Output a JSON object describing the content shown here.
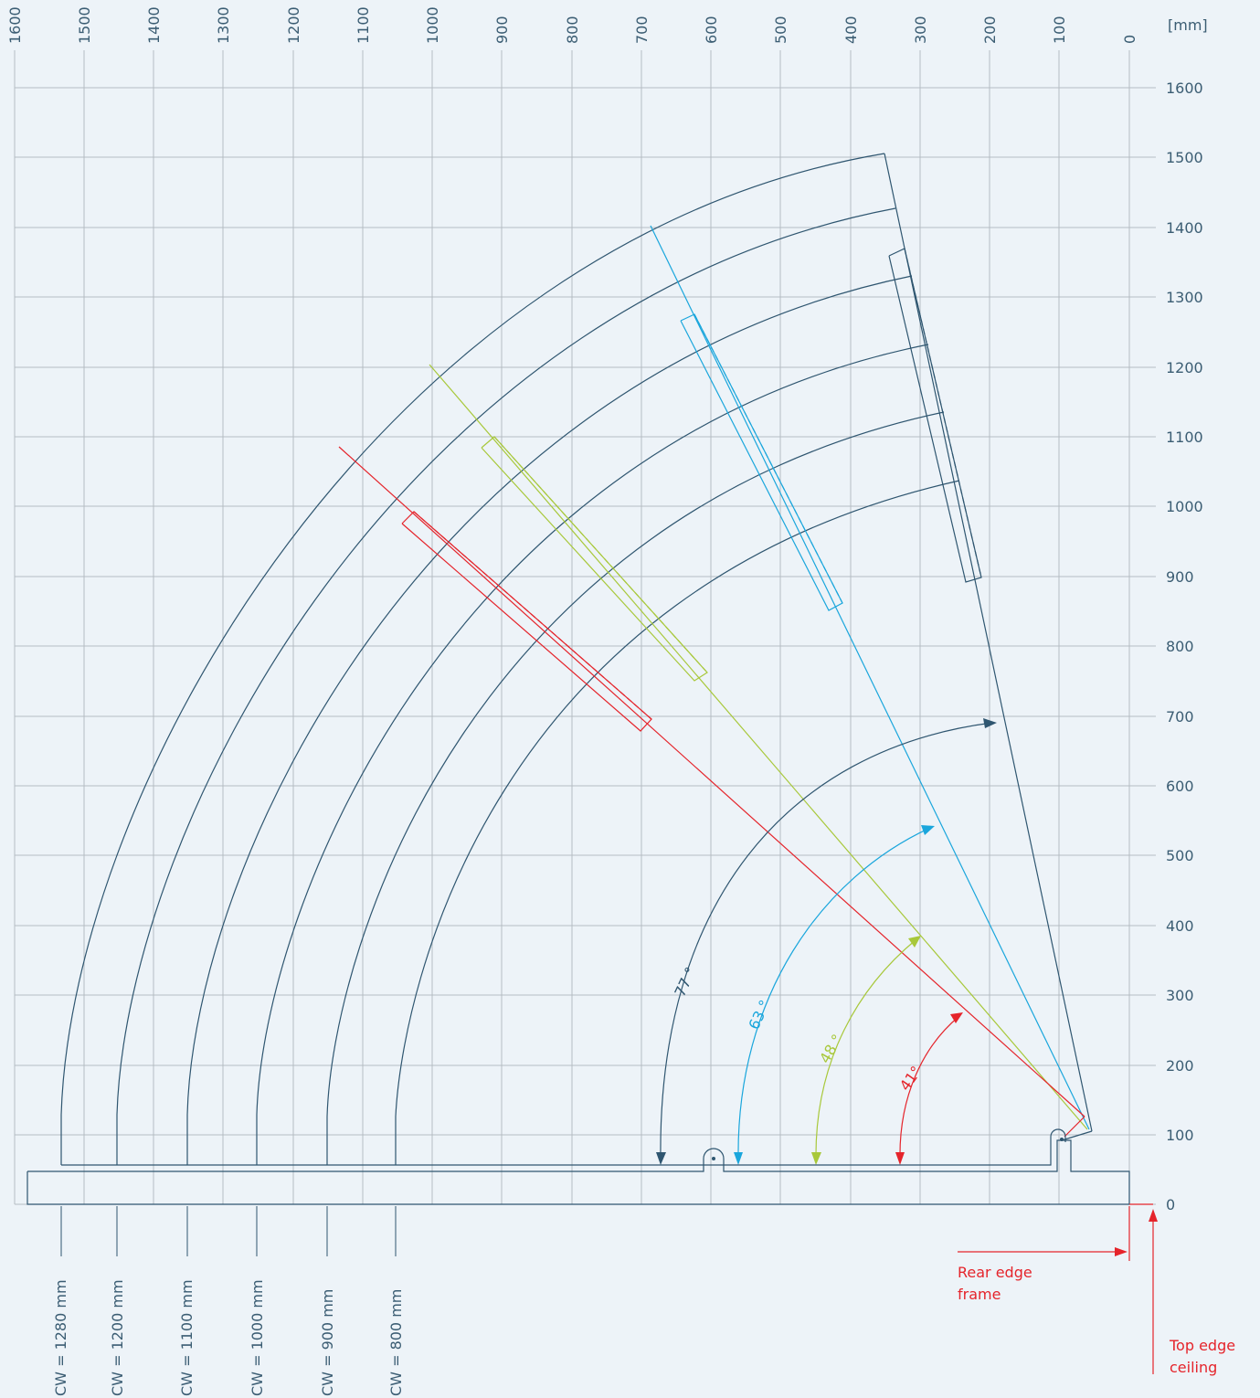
{
  "unit_label": "[mm]",
  "x_ticks": [
    "1600",
    "1500",
    "1400",
    "1300",
    "1200",
    "1100",
    "1000",
    "900",
    "800",
    "700",
    "600",
    "500",
    "400",
    "300",
    "200",
    "100",
    "0"
  ],
  "y_ticks": [
    "1600",
    "1500",
    "1400",
    "1300",
    "1200",
    "1100",
    "1000",
    "900",
    "800",
    "700",
    "600",
    "500",
    "400",
    "300",
    "200",
    "100",
    "0"
  ],
  "cw_labels": [
    "CW = 1280 mm",
    "CW = 1200 mm",
    "CW = 1100 mm",
    "CW = 1000 mm",
    "CW = 900 mm",
    "CW = 800 mm"
  ],
  "angles": [
    {
      "label": "77 °",
      "color": "#2f5670"
    },
    {
      "label": "63 °",
      "color": "#1aa6dc"
    },
    {
      "label": "48 °",
      "color": "#a8c83a"
    },
    {
      "label": "41°",
      "color": "#e5242b"
    }
  ],
  "rear_edge_label": [
    "Rear edge",
    "frame"
  ],
  "top_edge_label": [
    "Top edge",
    "ceiling"
  ],
  "colors": {
    "grid": "#b5bcc3",
    "dark": "#2f5670",
    "cyan": "#1aa6dc",
    "green": "#a8c83a",
    "red": "#e5242b",
    "background": "#edf3f8"
  }
}
